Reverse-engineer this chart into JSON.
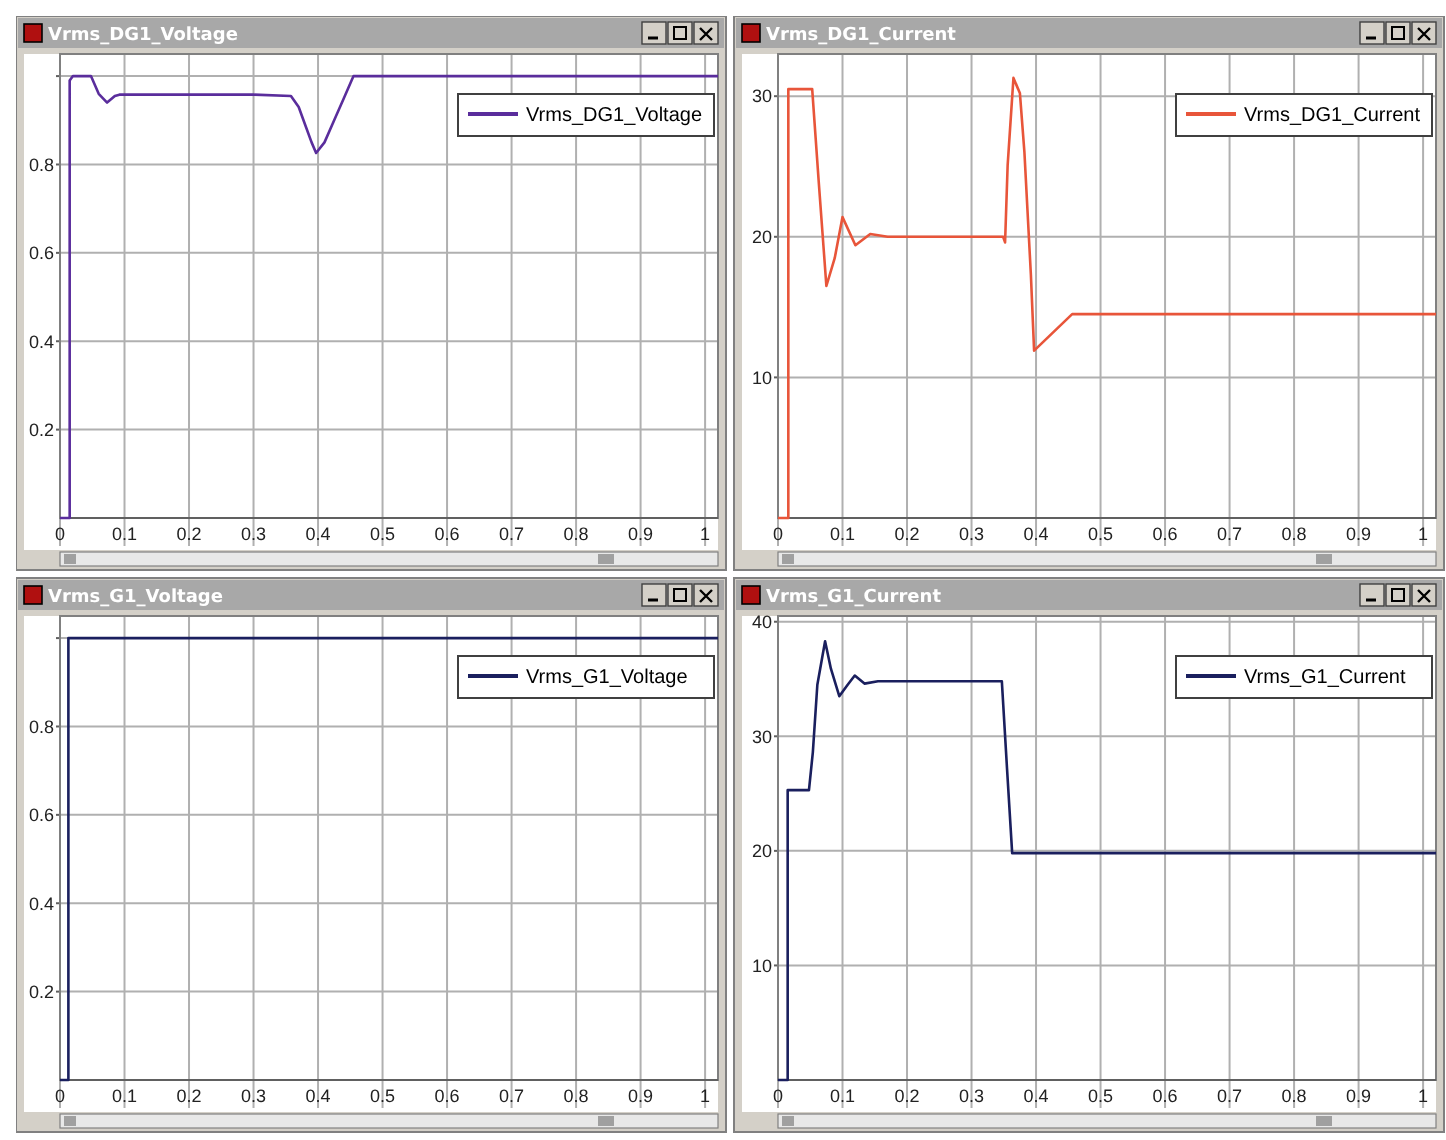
{
  "chart_data": [
    {
      "type": "line",
      "title": "Vrms_DG1_Voltage",
      "x": [
        0,
        0.015,
        0.015,
        0.02,
        0.048,
        0.06,
        0.073,
        0.085,
        0.092,
        0.2,
        0.3,
        0.358,
        0.37,
        0.38,
        0.39,
        0.397,
        0.41,
        0.425,
        0.44,
        0.455,
        0.6,
        0.8,
        1.02
      ],
      "xlim": [
        0,
        1.02
      ],
      "xticks": [
        0,
        0.1,
        0.2,
        0.3,
        0.4,
        0.5,
        0.6,
        0.7,
        0.8,
        0.9,
        1
      ],
      "ylim": [
        0,
        1.05
      ],
      "yticks": [
        0.2,
        0.4,
        0.6,
        0.8,
        {
          "value": 1,
          "label": null
        }
      ],
      "grid": true,
      "legend": "top right",
      "series": [
        {
          "name": "Vrms_DG1_Voltage",
          "color": "#5a2d9c",
          "values": [
            0,
            0,
            0.99,
            1.0,
            1.0,
            0.96,
            0.94,
            0.955,
            0.958,
            0.958,
            0.958,
            0.955,
            0.93,
            0.89,
            0.85,
            0.826,
            0.85,
            0.9,
            0.95,
            1.0,
            1.0,
            1.0,
            1.0
          ]
        }
      ]
    },
    {
      "type": "line",
      "title": "Vrms_DG1_Current",
      "x": [
        0,
        0.016,
        0.016,
        0.053,
        0.063,
        0.075,
        0.088,
        0.1,
        0.12,
        0.143,
        0.17,
        0.25,
        0.349,
        0.352,
        0.356,
        0.365,
        0.375,
        0.382,
        0.392,
        0.397,
        0.456,
        0.6,
        0.8,
        1.02
      ],
      "xlim": [
        0,
        1.02
      ],
      "xticks": [
        0,
        0.1,
        0.2,
        0.3,
        0.4,
        0.5,
        0.6,
        0.7,
        0.8,
        0.9,
        1
      ],
      "ylim": [
        0,
        33
      ],
      "yticks": [
        10,
        20,
        30
      ],
      "grid": true,
      "legend": "top right",
      "series": [
        {
          "name": "Vrms_DG1_Current",
          "color": "#e8553a",
          "values": [
            0,
            0,
            30.5,
            30.5,
            24,
            16.5,
            18.5,
            21.4,
            19.4,
            20.2,
            20,
            20,
            20,
            19.6,
            25.1,
            31.3,
            30.2,
            26,
            17.3,
            11.9,
            14.5,
            14.5,
            14.5,
            14.5
          ]
        }
      ]
    },
    {
      "type": "line",
      "title": "Vrms_G1_Voltage",
      "x": [
        0,
        0.013,
        0.013,
        0.2,
        0.4,
        0.6,
        0.8,
        1.02
      ],
      "xlim": [
        0,
        1.02
      ],
      "xticks": [
        0,
        0.1,
        0.2,
        0.3,
        0.4,
        0.5,
        0.6,
        0.7,
        0.8,
        0.9,
        1
      ],
      "ylim": [
        0,
        1.05
      ],
      "yticks": [
        0.2,
        0.4,
        0.6,
        0.8,
        {
          "value": 1,
          "label": null
        }
      ],
      "grid": true,
      "legend": "top right",
      "series": [
        {
          "name": "Vrms_G1_Voltage",
          "color": "#1a1f5e",
          "values": [
            0,
            0,
            1.0,
            1.0,
            1.0,
            1.0,
            1.0,
            1.0
          ]
        }
      ]
    },
    {
      "type": "line",
      "title": "Vrms_G1_Current",
      "x": [
        0,
        0.015,
        0.015,
        0.048,
        0.054,
        0.061,
        0.073,
        0.082,
        0.095,
        0.108,
        0.119,
        0.134,
        0.155,
        0.25,
        0.347,
        0.355,
        0.363,
        0.5,
        0.7,
        0.9,
        1.02
      ],
      "xlim": [
        0,
        1.02
      ],
      "xticks": [
        0,
        0.1,
        0.2,
        0.3,
        0.4,
        0.5,
        0.6,
        0.7,
        0.8,
        0.9,
        1
      ],
      "ylim": [
        0,
        40.5
      ],
      "yticks": [
        10,
        20,
        30,
        40
      ],
      "grid": true,
      "legend": "top right",
      "series": [
        {
          "name": "Vrms_G1_Current",
          "color": "#1a1f5e",
          "values": [
            0,
            0,
            25.3,
            25.3,
            28.6,
            34.5,
            38.3,
            35.9,
            33.5,
            34.5,
            35.3,
            34.6,
            34.8,
            34.8,
            34.8,
            27.2,
            19.8,
            19.8,
            19.8,
            19.8,
            19.8
          ]
        }
      ]
    }
  ]
}
